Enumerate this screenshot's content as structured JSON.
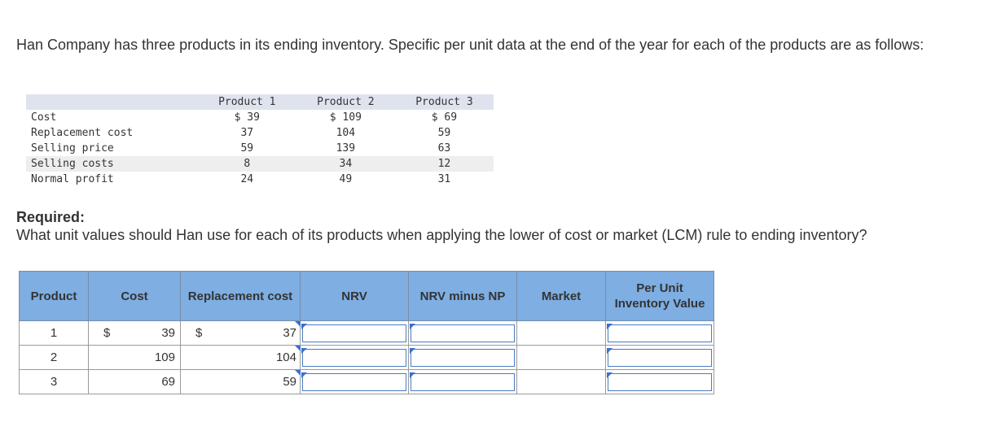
{
  "intro": "Han Company has three products in its ending inventory. Specific per unit data at the end of the year for each of the products are as follows:",
  "data_table": {
    "headers": [
      "Product 1",
      "Product 2",
      "Product 3"
    ],
    "rows": [
      {
        "label": "Cost",
        "values": [
          "$ 39",
          "$ 109",
          "$ 69"
        ]
      },
      {
        "label": "Replacement cost",
        "values": [
          "37",
          "104",
          "59"
        ]
      },
      {
        "label": "Selling price",
        "values": [
          "59",
          "139",
          "63"
        ]
      },
      {
        "label": "Selling costs",
        "values": [
          "8",
          "34",
          "12"
        ]
      },
      {
        "label": "Normal profit",
        "values": [
          "24",
          "49",
          "31"
        ]
      }
    ]
  },
  "required": {
    "heading": "Required:",
    "question": "What unit values should Han use for each of its products when applying the lower of cost or market (LCM) rule to ending inventory?"
  },
  "answer_table": {
    "headers": {
      "product": "Product",
      "cost": "Cost",
      "replacement": "Replacement cost",
      "nrv": "NRV",
      "nrv_minus_np": "NRV minus NP",
      "market": "Market",
      "per_unit": "Per Unit Inventory Value"
    },
    "currency": "$",
    "rows": [
      {
        "product": "1",
        "cost": "39",
        "replacement": "37",
        "nrv": "",
        "nrv_minus_np": "",
        "market": "",
        "per_unit": ""
      },
      {
        "product": "2",
        "cost": "109",
        "replacement": "104",
        "nrv": "",
        "nrv_minus_np": "",
        "market": "",
        "per_unit": ""
      },
      {
        "product": "3",
        "cost": "69",
        "replacement": "59",
        "nrv": "",
        "nrv_minus_np": "",
        "market": "",
        "per_unit": ""
      }
    ]
  }
}
